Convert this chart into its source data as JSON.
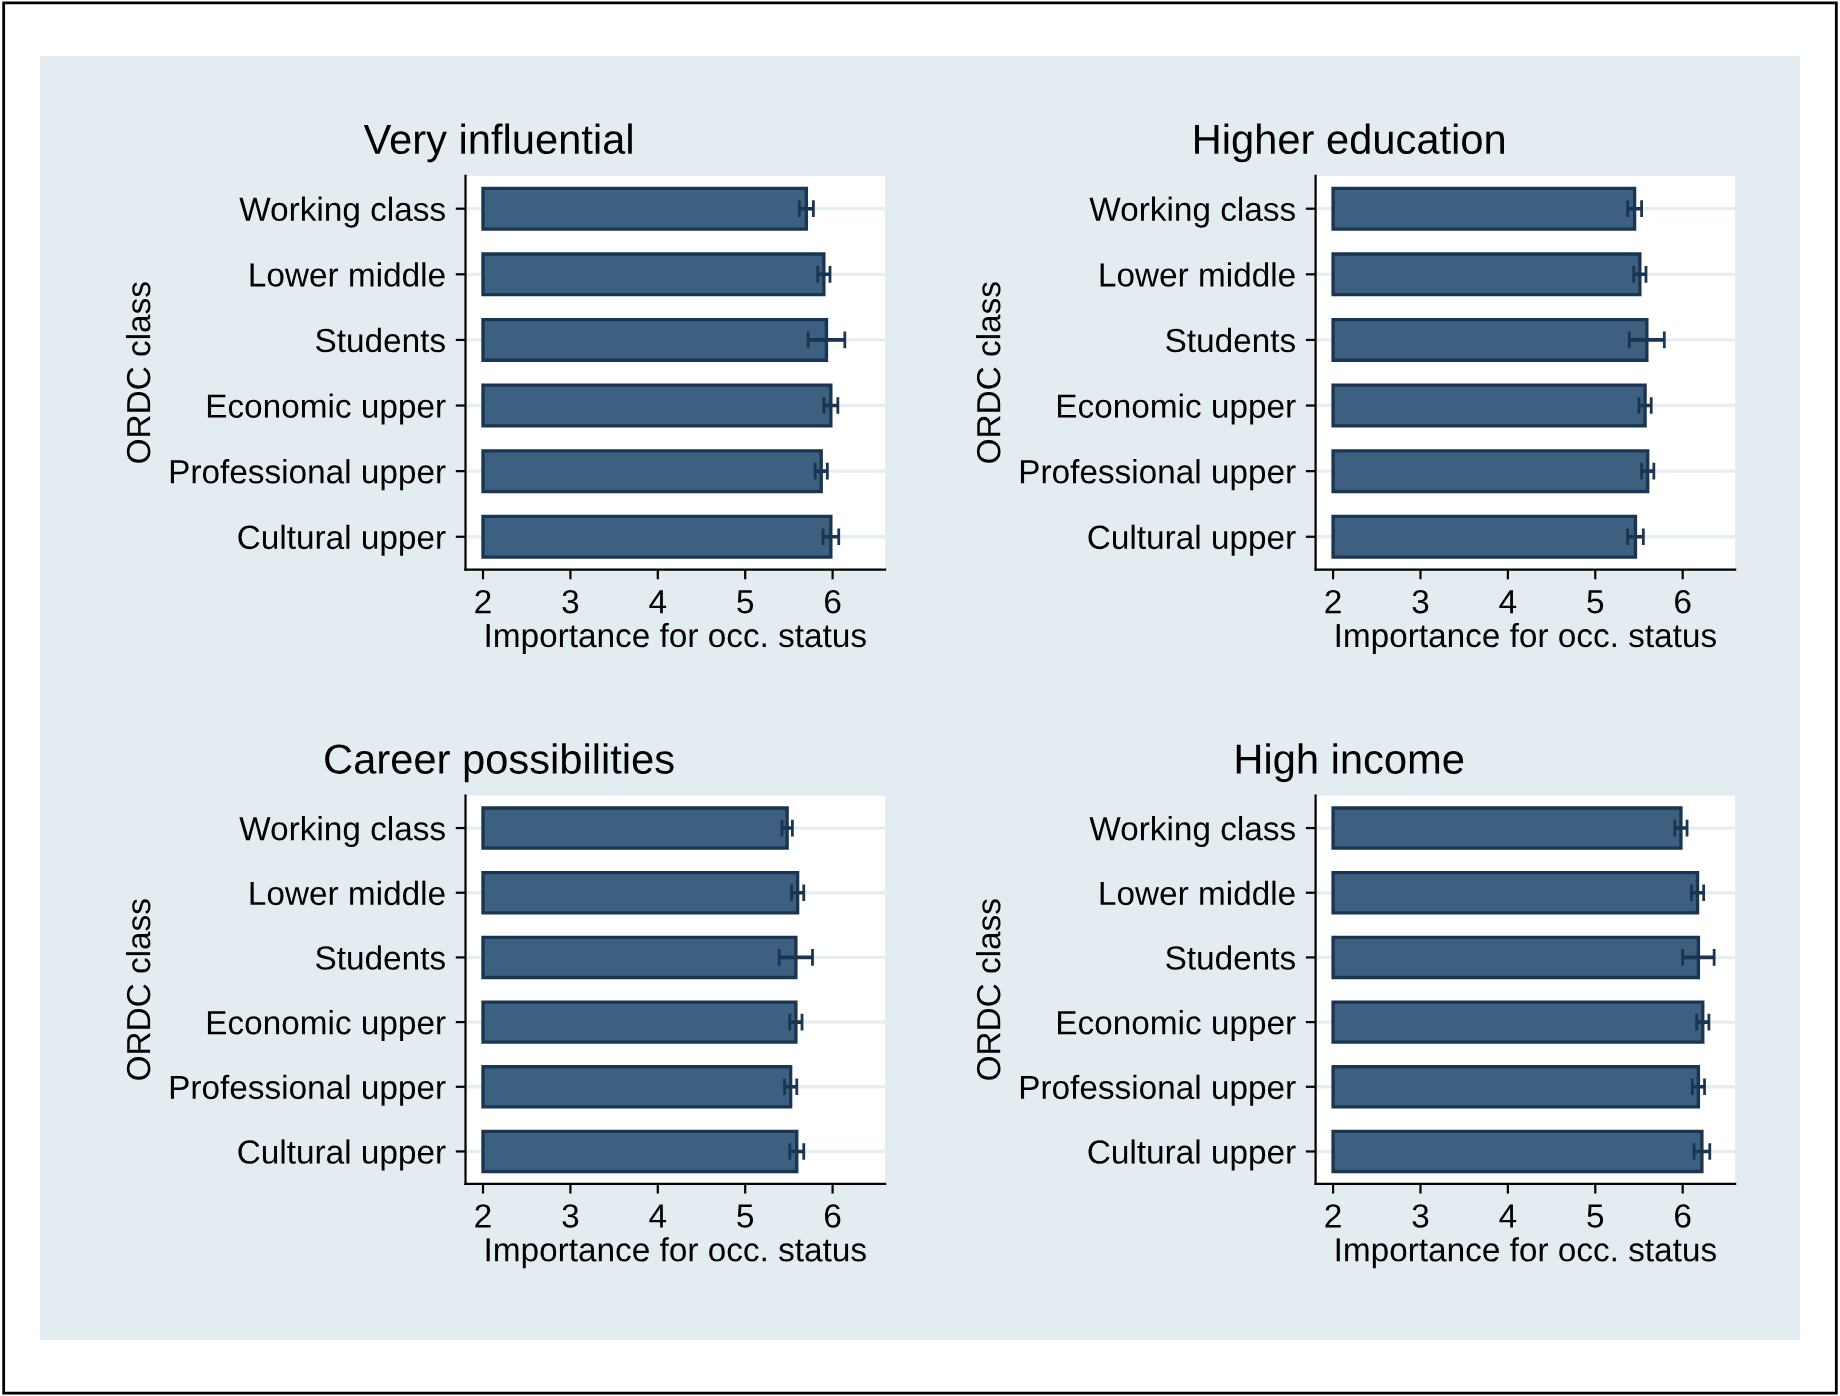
{
  "chart_data": [
    {
      "type": "bar",
      "orientation": "horizontal",
      "title": "Very influential",
      "xlabel": "Importance for occ. status",
      "ylabel": "ORDC class",
      "categories": [
        "Working class",
        "Lower middle",
        "Students",
        "Economic upper",
        "Professional upper",
        "Cultural upper"
      ],
      "base": [
        2,
        2,
        2,
        2,
        2,
        2
      ],
      "values": [
        3.7,
        3.9,
        3.93,
        3.98,
        3.87,
        3.98
      ],
      "errors": [
        0.08,
        0.07,
        0.21,
        0.08,
        0.07,
        0.09
      ],
      "color": "#3d5f80",
      "xlim": [
        1.8,
        6.6
      ],
      "xticks": [
        2,
        3,
        4,
        5,
        6
      ],
      "grid": "y"
    },
    {
      "type": "bar",
      "orientation": "horizontal",
      "title": "Higher education",
      "xlabel": "Importance for occ. status",
      "ylabel": "ORDC class",
      "categories": [
        "Working class",
        "Lower middle",
        "Students",
        "Economic upper",
        "Professional upper",
        "Cultural upper"
      ],
      "base": [
        2,
        2,
        2,
        2,
        2,
        2
      ],
      "values": [
        3.45,
        3.51,
        3.59,
        3.57,
        3.6,
        3.46
      ],
      "errors": [
        0.08,
        0.07,
        0.2,
        0.07,
        0.07,
        0.09
      ],
      "color": "#3d5f80",
      "xlim": [
        1.8,
        6.6
      ],
      "xticks": [
        2,
        3,
        4,
        5,
        6
      ],
      "grid": "y"
    },
    {
      "type": "bar",
      "orientation": "horizontal",
      "title": "Career possibilities",
      "xlabel": "Importance for occ. status",
      "ylabel": "ORDC class",
      "categories": [
        "Working class",
        "Lower middle",
        "Students",
        "Economic upper",
        "Professional upper",
        "Cultural upper"
      ],
      "base": [
        2,
        2,
        2,
        2,
        2,
        2
      ],
      "values": [
        3.48,
        3.6,
        3.58,
        3.58,
        3.52,
        3.59
      ],
      "errors": [
        0.06,
        0.07,
        0.19,
        0.07,
        0.07,
        0.08
      ],
      "color": "#3d5f80",
      "xlim": [
        1.8,
        6.6
      ],
      "xticks": [
        2,
        3,
        4,
        5,
        6
      ],
      "grid": "y"
    },
    {
      "type": "bar",
      "orientation": "horizontal",
      "title": "High income",
      "xlabel": "Importance for occ. status",
      "ylabel": "ORDC class",
      "categories": [
        "Working class",
        "Lower middle",
        "Students",
        "Economic upper",
        "Professional upper",
        "Cultural upper"
      ],
      "base": [
        2,
        2,
        2,
        2,
        2,
        2
      ],
      "values": [
        3.98,
        4.17,
        4.18,
        4.23,
        4.18,
        4.22
      ],
      "errors": [
        0.07,
        0.07,
        0.18,
        0.07,
        0.07,
        0.09
      ],
      "color": "#3d5f80",
      "xlim": [
        1.8,
        6.6
      ],
      "xticks": [
        2,
        3,
        4,
        5,
        6
      ],
      "grid": "y"
    }
  ]
}
